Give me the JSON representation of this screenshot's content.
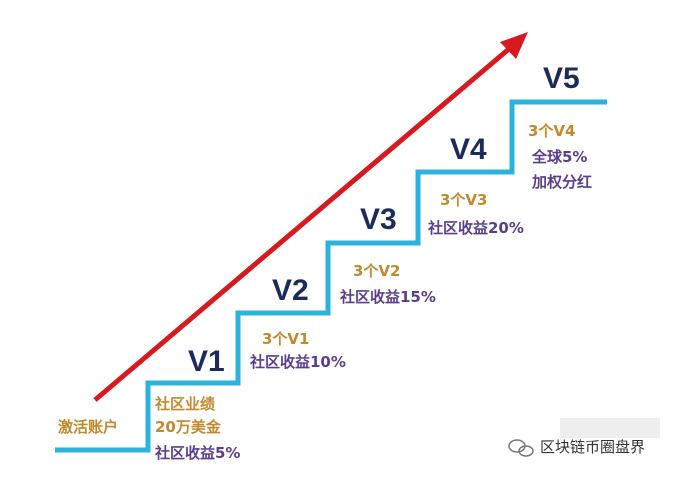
{
  "start": {
    "label": "激活账户"
  },
  "steps": [
    {
      "level": "V1",
      "requirement": "社区业绩",
      "amount": "20万美金",
      "reward": "社区收益5%"
    },
    {
      "level": "V2",
      "requirement": "3个V1",
      "reward": "社区收益10%"
    },
    {
      "level": "V3",
      "requirement": "3个V2",
      "reward": "社区收益15%"
    },
    {
      "level": "V4",
      "requirement": "3个V3",
      "reward": "社区收益20%"
    },
    {
      "level": "V5",
      "requirement": "3个V4",
      "reward": "全球5%",
      "extra": "加权分红"
    }
  ],
  "watermark": "区块链币圈盘界"
}
